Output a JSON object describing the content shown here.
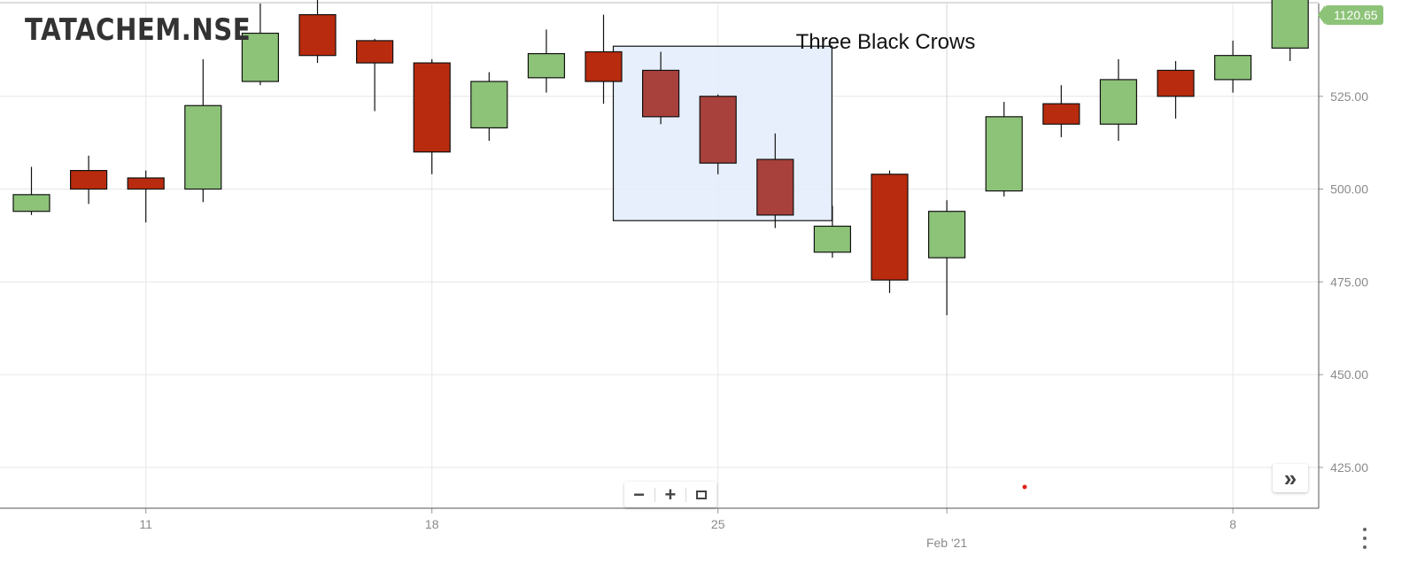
{
  "symbol": "TATACHEM.NSE",
  "last_price_tag": "1120.65",
  "annotation": {
    "label": "Three Black Crows"
  },
  "colors": {
    "up": "#8dc378",
    "down": "#b92b0e",
    "crow": "#a8403b",
    "highlight_fill": "#e3ecfb",
    "grid": "#e6e6e6",
    "axis_text": "#8a8a8a",
    "marker": "#e0201b"
  },
  "chart_data": {
    "type": "candlestick",
    "title": "",
    "xlabel": "",
    "ylabel": "",
    "ylim": [
      414,
      550
    ],
    "y_ticks": [
      "425.00",
      "450.00",
      "475.00",
      "500.00",
      "525.00"
    ],
    "x_ticks": [
      {
        "date": "2021-01-11",
        "label": "11"
      },
      {
        "date": "2021-01-18",
        "label": "18"
      },
      {
        "date": "2021-01-25",
        "label": "25"
      },
      {
        "date": "2021-02-01",
        "label": "Feb '21"
      },
      {
        "date": "2021-02-08",
        "label": "8"
      }
    ],
    "grid": true,
    "candles": [
      {
        "date": "2021-01-07",
        "open": 494,
        "high": 506,
        "low": 493,
        "close": 498.5
      },
      {
        "date": "2021-01-08",
        "open": 505,
        "high": 509,
        "low": 496,
        "close": 500
      },
      {
        "date": "2021-01-11",
        "open": 503,
        "high": 505,
        "low": 491,
        "close": 500
      },
      {
        "date": "2021-01-12",
        "open": 500,
        "high": 535,
        "low": 496.5,
        "close": 522.5
      },
      {
        "date": "2021-01-13",
        "open": 529,
        "high": 550,
        "low": 528,
        "close": 542
      },
      {
        "date": "2021-01-14",
        "open": 547,
        "high": 551,
        "low": 534,
        "close": 536
      },
      {
        "date": "2021-01-15",
        "open": 540,
        "high": 540.5,
        "low": 521,
        "close": 534
      },
      {
        "date": "2021-01-18",
        "open": 534,
        "high": 535,
        "low": 504,
        "close": 510
      },
      {
        "date": "2021-01-19",
        "open": 516.5,
        "high": 531.5,
        "low": 513,
        "close": 529
      },
      {
        "date": "2021-01-20",
        "open": 530,
        "high": 543,
        "low": 526,
        "close": 536.5
      },
      {
        "date": "2021-01-21",
        "open": 537,
        "high": 547,
        "low": 523,
        "close": 529
      },
      {
        "date": "2021-01-22",
        "open": 532,
        "high": 537,
        "low": 517.5,
        "close": 519.5
      },
      {
        "date": "2021-01-25",
        "open": 525,
        "high": 525.5,
        "low": 504,
        "close": 507
      },
      {
        "date": "2021-01-27",
        "open": 508,
        "high": 515,
        "low": 489.5,
        "close": 493
      },
      {
        "date": "2021-01-28",
        "open": 483,
        "high": 495.5,
        "low": 481.5,
        "close": 490
      },
      {
        "date": "2021-01-29",
        "open": 504,
        "high": 505,
        "low": 472,
        "close": 475.5
      },
      {
        "date": "2021-02-01",
        "open": 481.5,
        "high": 497,
        "low": 466,
        "close": 494
      },
      {
        "date": "2021-02-02",
        "open": 499.5,
        "high": 523.5,
        "low": 498,
        "close": 519.5
      },
      {
        "date": "2021-02-03",
        "open": 523,
        "high": 528,
        "low": 514,
        "close": 517.5
      },
      {
        "date": "2021-02-04",
        "open": 517.5,
        "high": 535,
        "low": 513,
        "close": 529.5
      },
      {
        "date": "2021-02-05",
        "open": 532,
        "high": 534.5,
        "low": 519,
        "close": 525
      },
      {
        "date": "2021-02-08",
        "open": 529.5,
        "high": 540,
        "low": 526,
        "close": 536
      },
      {
        "date": "2021-02-09",
        "open": 538,
        "high": 553,
        "low": 534.5,
        "close": 553
      }
    ],
    "three_black_crows": [
      "2021-01-22",
      "2021-01-25",
      "2021-01-27"
    ],
    "highlight": {
      "x_from": "2021-01-21",
      "x_to": "2021-01-28",
      "y_from": 491.5,
      "y_to": 538.5
    }
  }
}
